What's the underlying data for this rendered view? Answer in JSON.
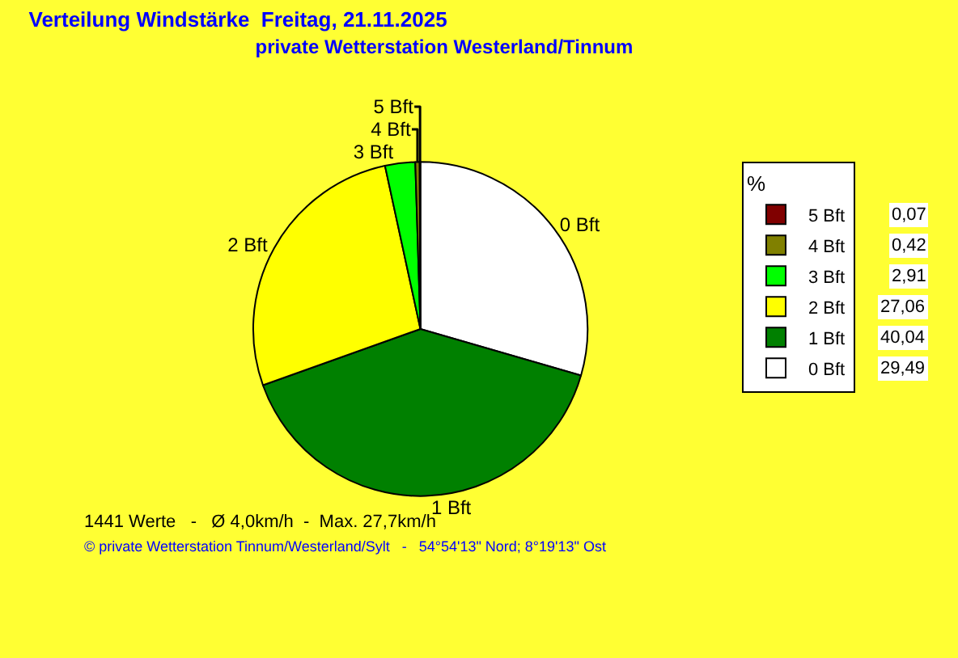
{
  "chart_data": {
    "type": "pie",
    "title": "Verteilung Windstärke  Freitag, 21.11.2025",
    "subtitle": "private Wetterstation Westerland/Tinnum",
    "categories": [
      "0 Bft",
      "1 Bft",
      "2 Bft",
      "3 Bft",
      "4 Bft",
      "5 Bft"
    ],
    "values": [
      29.49,
      40.04,
      27.06,
      2.91,
      0.42,
      0.07
    ],
    "value_labels": [
      "29,49",
      "40,04",
      "27,06",
      "2,91",
      "0,42",
      "0,07"
    ],
    "colors": [
      "#ffffff",
      "#008000",
      "#ffff00",
      "#00ff00",
      "#808000",
      "#800000"
    ],
    "legend": "top right",
    "legend_title": "%",
    "annotations": [
      "1441 Werte   -   Ø 4,0km/h  -  Max. 27,7km/h",
      "© private Wetterstation Tinnum/Westerland/Sylt   -   54°54'13\" Nord; 8°19'13\" Ost"
    ]
  }
}
